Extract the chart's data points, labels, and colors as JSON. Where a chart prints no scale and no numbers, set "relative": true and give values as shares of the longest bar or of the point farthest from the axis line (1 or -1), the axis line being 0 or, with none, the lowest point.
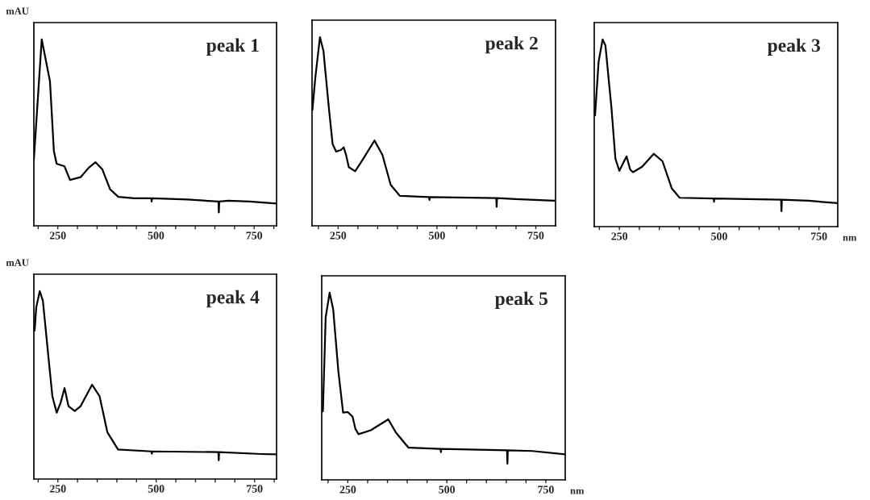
{
  "chart_data": [
    {
      "type": "line",
      "relative": true,
      "ylabel": "mAU",
      "annotations": [
        "peak 1"
      ],
      "color": "#000000",
      "marker": "none",
      "line_style": "solid",
      "xlim": [
        189,
        807
      ],
      "xticks": [
        {
          "value": 200,
          "label": null
        },
        250,
        {
          "value": 300,
          "label": null
        },
        {
          "value": 350,
          "label": null
        },
        {
          "value": 400,
          "label": null
        },
        {
          "value": 450,
          "label": null
        },
        500,
        {
          "value": 550,
          "label": null
        },
        {
          "value": 600,
          "label": null
        },
        {
          "value": 650,
          "label": null
        },
        {
          "value": 700,
          "label": null
        },
        750,
        {
          "value": 800,
          "label": null
        }
      ],
      "x": [
        189,
        209,
        230,
        240,
        247,
        267,
        281,
        308,
        329,
        346,
        363,
        383,
        404,
        445,
        488,
        489,
        490,
        581,
        659,
        660,
        661,
        684,
        738,
        807
      ],
      "values": [
        0.355,
        1.0,
        0.775,
        0.4,
        0.333,
        0.319,
        0.246,
        0.261,
        0.312,
        0.341,
        0.304,
        0.196,
        0.155,
        0.148,
        0.148,
        0.13,
        0.148,
        0.141,
        0.13,
        0.072,
        0.13,
        0.135,
        0.13,
        0.119
      ]
    },
    {
      "type": "line",
      "relative": true,
      "annotations": [
        "peak 2"
      ],
      "color": "#000000",
      "marker": "none",
      "line_style": "solid",
      "xlim": [
        184,
        800
      ],
      "xticks": [
        {
          "value": 200,
          "label": null
        },
        250,
        {
          "value": 300,
          "label": null
        },
        {
          "value": 350,
          "label": null
        },
        {
          "value": 400,
          "label": null
        },
        {
          "value": 450,
          "label": null
        },
        500,
        {
          "value": 550,
          "label": null
        },
        {
          "value": 600,
          "label": null
        },
        {
          "value": 650,
          "label": null
        },
        {
          "value": 700,
          "label": null
        },
        750
      ],
      "x": [
        185,
        192,
        204,
        213,
        226,
        236,
        245,
        257,
        264,
        270,
        277,
        293,
        311,
        342,
        362,
        383,
        406,
        480,
        481,
        482,
        650,
        651,
        652,
        699,
        797
      ],
      "values": [
        0.614,
        0.78,
        1.0,
        0.925,
        0.636,
        0.434,
        0.393,
        0.402,
        0.416,
        0.376,
        0.311,
        0.289,
        0.347,
        0.452,
        0.376,
        0.217,
        0.159,
        0.152,
        0.137,
        0.152,
        0.147,
        0.101,
        0.147,
        0.142,
        0.133
      ]
    },
    {
      "type": "line",
      "relative": true,
      "xlabel": "nm",
      "annotations": [
        "peak 3"
      ],
      "color": "#000000",
      "marker": "none",
      "line_style": "solid",
      "xlim": [
        187,
        797
      ],
      "xticks": [
        {
          "value": 200,
          "label": null
        },
        250,
        {
          "value": 300,
          "label": null
        },
        {
          "value": 350,
          "label": null
        },
        {
          "value": 400,
          "label": null
        },
        {
          "value": 450,
          "label": null
        },
        500,
        {
          "value": 550,
          "label": null
        },
        {
          "value": 600,
          "label": null
        },
        {
          "value": 650,
          "label": null
        },
        {
          "value": 700,
          "label": null
        },
        750
      ],
      "x": [
        189,
        198,
        208,
        215,
        230,
        240,
        250,
        260,
        268,
        277,
        284,
        307,
        336,
        358,
        381,
        401,
        486,
        487,
        488,
        655,
        656,
        657,
        724,
        797
      ],
      "values": [
        0.594,
        0.882,
        1.0,
        0.968,
        0.637,
        0.363,
        0.298,
        0.342,
        0.375,
        0.305,
        0.291,
        0.32,
        0.389,
        0.349,
        0.205,
        0.154,
        0.15,
        0.133,
        0.15,
        0.144,
        0.082,
        0.144,
        0.138,
        0.125
      ]
    },
    {
      "type": "line",
      "relative": true,
      "ylabel": "mAU",
      "annotations": [
        "peak 4"
      ],
      "color": "#000000",
      "marker": "none",
      "line_style": "solid",
      "xlim": [
        189,
        806
      ],
      "xticks": [
        {
          "value": 200,
          "label": null
        },
        250,
        {
          "value": 300,
          "label": null
        },
        {
          "value": 350,
          "label": null
        },
        {
          "value": 400,
          "label": null
        },
        {
          "value": 450,
          "label": null
        },
        500,
        {
          "value": 550,
          "label": null
        },
        {
          "value": 600,
          "label": null
        },
        {
          "value": 650,
          "label": null
        },
        {
          "value": 700,
          "label": null
        },
        750,
        {
          "value": 800,
          "label": null
        }
      ],
      "x": [
        191,
        195,
        204,
        212,
        226,
        236,
        247,
        257,
        267,
        277,
        293,
        308,
        337,
        356,
        376,
        403,
        488,
        489,
        490,
        658,
        659,
        660,
        768,
        806
      ],
      "values": [
        0.79,
        0.913,
        1.0,
        0.948,
        0.65,
        0.441,
        0.353,
        0.406,
        0.484,
        0.388,
        0.362,
        0.388,
        0.502,
        0.441,
        0.248,
        0.157,
        0.147,
        0.135,
        0.147,
        0.143,
        0.1,
        0.143,
        0.133,
        0.131
      ]
    },
    {
      "type": "line",
      "relative": true,
      "xlabel": "nm",
      "annotations": [
        "peak 5"
      ],
      "color": "#000000",
      "marker": "none",
      "line_style": "solid",
      "xlim": [
        184,
        799
      ],
      "xticks": [
        {
          "value": 200,
          "label": null
        },
        250,
        {
          "value": 300,
          "label": null
        },
        {
          "value": 350,
          "label": null
        },
        {
          "value": 400,
          "label": null
        },
        {
          "value": 450,
          "label": null
        },
        500,
        {
          "value": 550,
          "label": null
        },
        {
          "value": 600,
          "label": null
        },
        {
          "value": 650,
          "label": null
        },
        {
          "value": 700,
          "label": null
        },
        750
      ],
      "x": [
        187,
        194,
        204,
        213,
        226,
        238,
        250,
        262,
        269,
        277,
        308,
        352,
        372,
        403,
        484,
        485,
        486,
        652,
        653,
        654,
        716,
        799
      ],
      "values": [
        0.366,
        0.868,
        1.0,
        0.911,
        0.581,
        0.359,
        0.362,
        0.337,
        0.273,
        0.244,
        0.265,
        0.323,
        0.251,
        0.172,
        0.165,
        0.148,
        0.165,
        0.158,
        0.086,
        0.158,
        0.154,
        0.136
      ]
    }
  ]
}
